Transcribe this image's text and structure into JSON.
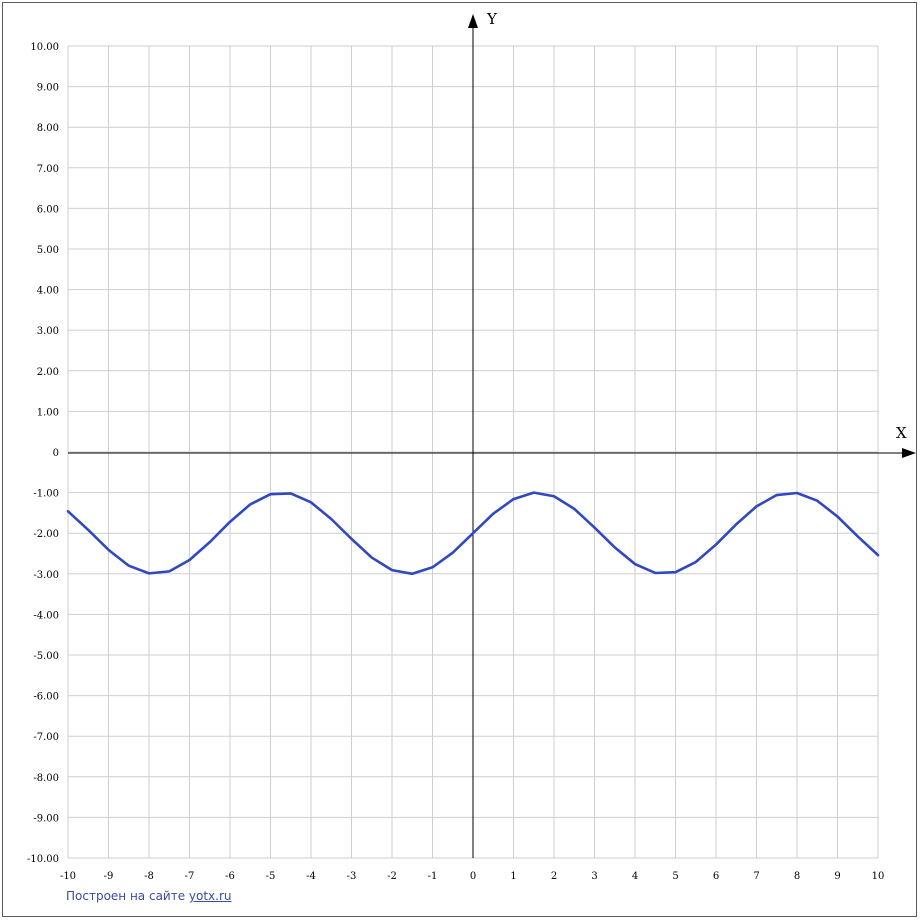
{
  "chart_data": {
    "type": "line",
    "x_axis_name": "X",
    "y_axis_name": "Y",
    "xlim": [
      -10,
      10
    ],
    "ylim": [
      -10,
      10
    ],
    "x_ticks": [
      "-10",
      "-9",
      "-8",
      "-7",
      "-6",
      "-5",
      "-4",
      "-3",
      "-2",
      "-1",
      "0",
      "1",
      "2",
      "3",
      "4",
      "5",
      "6",
      "7",
      "8",
      "9",
      "10"
    ],
    "y_ticks": [
      "10.00",
      "9.00",
      "8.00",
      "7.00",
      "6.00",
      "5.00",
      "4.00",
      "3.00",
      "2.00",
      "1.00",
      "0",
      "-1.00",
      "-2.00",
      "-3.00",
      "-4.00",
      "-5.00",
      "-6.00",
      "-7.00",
      "-8.00",
      "-9.00",
      "-10.00"
    ],
    "grid": true,
    "series": [
      {
        "color": "#3048c0",
        "x": [
          -10,
          -9.5,
          -9,
          -8.5,
          -8,
          -7.5,
          -7,
          -6.5,
          -6,
          -5.5,
          -5,
          -4.5,
          -4,
          -3.5,
          -3,
          -2.5,
          -2,
          -1.5,
          -1,
          -0.5,
          0,
          0.5,
          1,
          1.5,
          2,
          2.5,
          3,
          3.5,
          4,
          4.5,
          5,
          5.5,
          6,
          6.5,
          7,
          7.5,
          8,
          8.5,
          9,
          9.5,
          10
        ],
        "y": [
          -1.46,
          -1.92,
          -2.41,
          -2.8,
          -2.99,
          -2.94,
          -2.66,
          -2.22,
          -1.72,
          -1.29,
          -1.04,
          -1.02,
          -1.24,
          -1.65,
          -2.14,
          -2.6,
          -2.91,
          -3.0,
          -2.84,
          -2.48,
          -2.0,
          -1.52,
          -1.16,
          -1.0,
          -1.09,
          -1.4,
          -1.86,
          -2.35,
          -2.76,
          -2.98,
          -2.96,
          -2.71,
          -2.28,
          -1.78,
          -1.34,
          -1.06,
          -1.01,
          -1.2,
          -1.59,
          -2.08,
          -2.54
        ]
      }
    ]
  },
  "credit": {
    "prefix": "Построен на сайте ",
    "link": "yotx.ru"
  }
}
